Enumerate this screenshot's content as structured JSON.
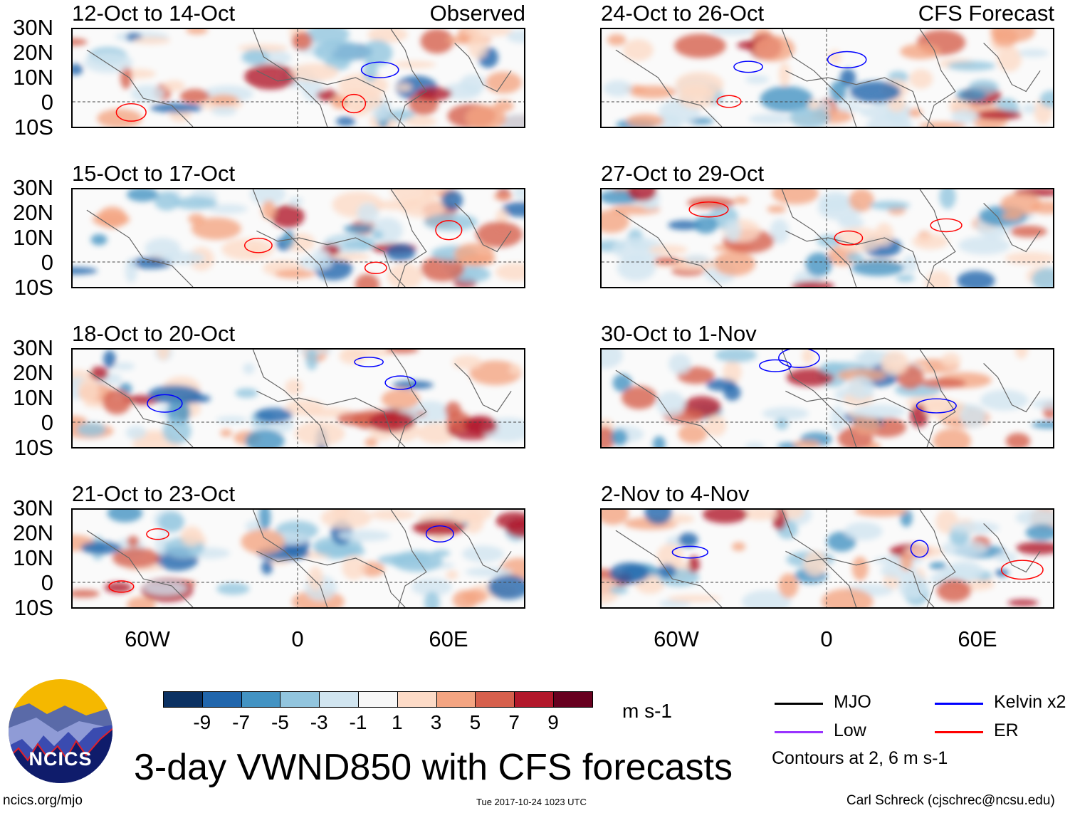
{
  "panels": {
    "left": [
      {
        "title": "12-Oct to 14-Oct",
        "label": "Observed"
      },
      {
        "title": "15-Oct to 17-Oct"
      },
      {
        "title": "18-Oct to 20-Oct"
      },
      {
        "title": "21-Oct to 23-Oct"
      }
    ],
    "right": [
      {
        "title": "24-Oct to 26-Oct",
        "label": "CFS Forecast"
      },
      {
        "title": "27-Oct to 29-Oct"
      },
      {
        "title": "30-Oct to 1-Nov"
      },
      {
        "title": "2-Nov to 4-Nov"
      }
    ]
  },
  "lat_labels": [
    "30N",
    "20N",
    "10N",
    "0",
    "10S"
  ],
  "lon_labels": [
    "60W",
    "0",
    "60E"
  ],
  "colorbar": {
    "colors": [
      "#0b3162",
      "#2166ac",
      "#4393c3",
      "#92c5de",
      "#d1e5f0",
      "#f7f7f7",
      "#fddbc7",
      "#f4a582",
      "#d6604d",
      "#b2182b",
      "#67001f"
    ],
    "labels": [
      "-9",
      "-7",
      "-5",
      "-3",
      "-1",
      "1",
      "3",
      "5",
      "7",
      "9"
    ],
    "units": "m s-1"
  },
  "legend": {
    "items": [
      {
        "label": "MJO",
        "color": "#000000"
      },
      {
        "label": "Kelvin x2",
        "color": "#0000ff"
      },
      {
        "label": "Low",
        "color": "#9933ff"
      },
      {
        "label": "ER",
        "color": "#ff0000"
      }
    ],
    "note": "Contours at 2, 6 m s-1"
  },
  "logo": {
    "text": "NCICS"
  },
  "title": "3-day VWND850 with CFS forecasts",
  "footer": {
    "url": "ncics.org/mjo",
    "timestamp": "Tue 2017-10-24 1023 UTC",
    "credit": "Carl Schreck (cjschrec@ncsu.edu)"
  }
}
